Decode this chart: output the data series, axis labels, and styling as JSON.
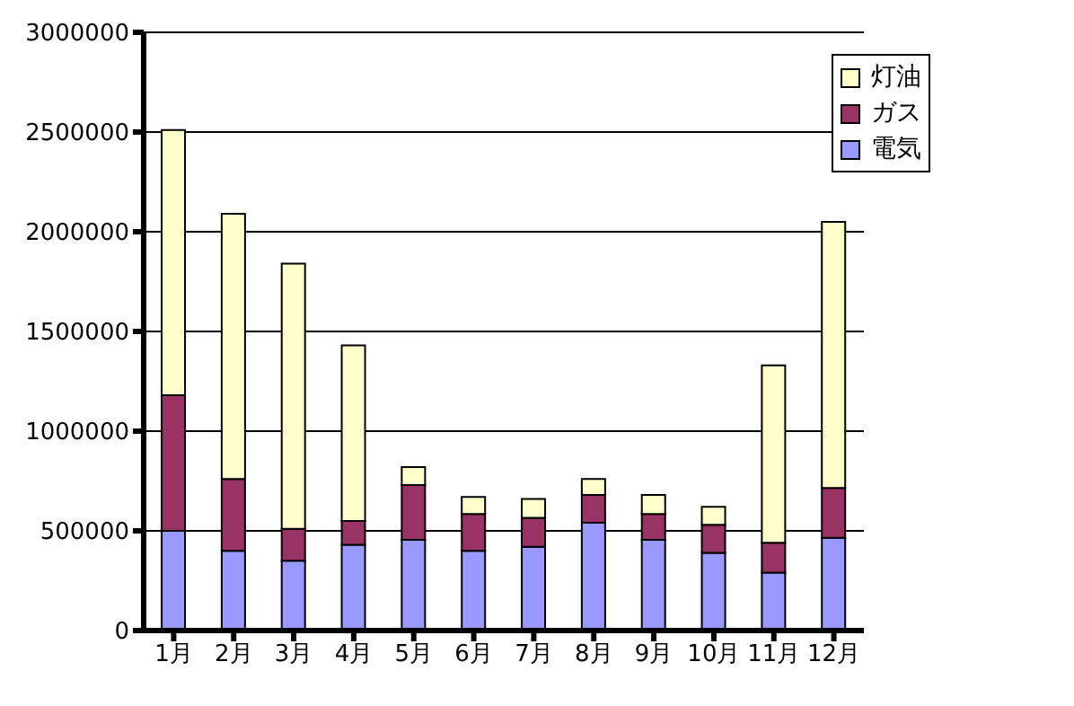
{
  "chart_data": {
    "type": "bar",
    "stacked": true,
    "categories": [
      "1月",
      "2月",
      "3月",
      "4月",
      "5月",
      "6月",
      "7月",
      "8月",
      "9月",
      "10月",
      "11月",
      "12月"
    ],
    "series": [
      {
        "name": "電気",
        "color": "#9999ff",
        "values": [
          500000,
          400000,
          350000,
          430000,
          455000,
          400000,
          420000,
          540000,
          455000,
          390000,
          290000,
          465000
        ]
      },
      {
        "name": "ガス",
        "color": "#993366",
        "values": [
          680000,
          360000,
          160000,
          120000,
          275000,
          185000,
          145000,
          140000,
          130000,
          140000,
          150000,
          250000
        ]
      },
      {
        "name": "灯油",
        "color": "#ffffcc",
        "values": [
          1330000,
          1330000,
          1330000,
          880000,
          90000,
          85000,
          95000,
          80000,
          95000,
          90000,
          890000,
          1335000
        ]
      }
    ],
    "ylim": [
      0,
      3000000
    ],
    "yticks": [
      0,
      500000,
      1000000,
      1500000,
      2000000,
      2500000,
      3000000
    ],
    "grid": "y",
    "legend": "top right"
  }
}
